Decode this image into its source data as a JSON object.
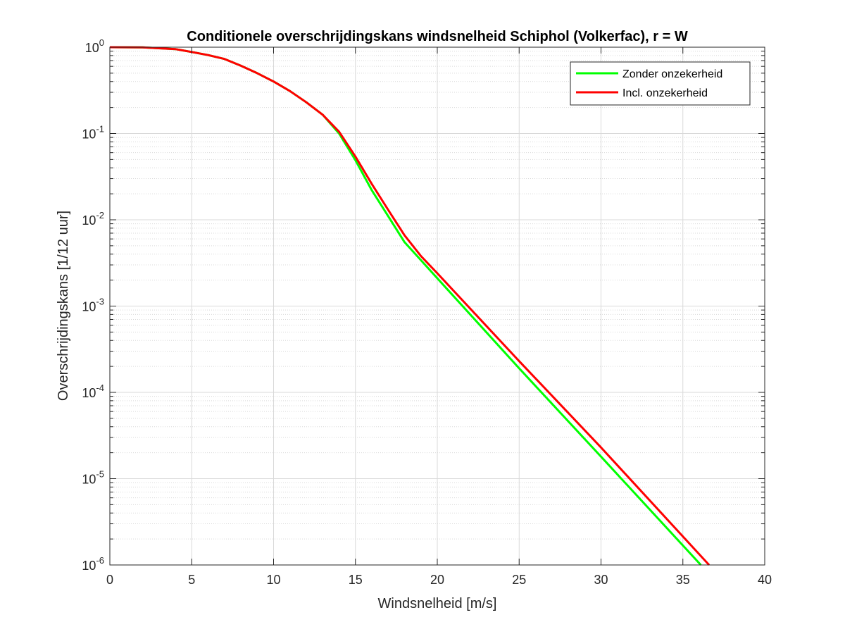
{
  "chart_data": {
    "type": "line",
    "title": "Conditionele overschrijdingskans windsnelheid Schiphol (Volkerfac), r = W",
    "xlabel": "Windsnelheid [m/s]",
    "ylabel": "Overschrijdingskans [1/12 uur]",
    "xlim": [
      0,
      40
    ],
    "ylim": [
      1e-06,
      1
    ],
    "yscale": "log",
    "grid": true,
    "legend_position": "top-right",
    "x_ticks": [
      "0",
      "5",
      "10",
      "15",
      "20",
      "25",
      "30",
      "35",
      "40"
    ],
    "y_ticks": [
      {
        "base": "10",
        "exp": "0",
        "value": 1
      },
      {
        "base": "10",
        "exp": "-1",
        "value": 0.1
      },
      {
        "base": "10",
        "exp": "-2",
        "value": 0.01
      },
      {
        "base": "10",
        "exp": "-3",
        "value": 0.001
      },
      {
        "base": "10",
        "exp": "-4",
        "value": 0.0001
      },
      {
        "base": "10",
        "exp": "-5",
        "value": 1e-05
      },
      {
        "base": "10",
        "exp": "-6",
        "value": 1e-06
      }
    ],
    "series": [
      {
        "name": "Zonder onzekerheid",
        "color": "#00ff00",
        "x": [
          0,
          2,
          4,
          5,
          6,
          7,
          8,
          9,
          10,
          11,
          12,
          13,
          14,
          15,
          16,
          17,
          18,
          19,
          20,
          25,
          30,
          36.1
        ],
        "y": [
          1.0,
          0.995,
          0.95,
          0.88,
          0.81,
          0.73,
          0.61,
          0.5,
          0.4,
          0.31,
          0.23,
          0.165,
          0.1,
          0.049,
          0.022,
          0.011,
          0.0055,
          0.0034,
          0.0021,
          0.00019,
          1.8e-05,
          1e-06
        ]
      },
      {
        "name": "Incl. onzekerheid",
        "color": "#ff0000",
        "x": [
          0,
          2,
          4,
          5,
          6,
          7,
          8,
          9,
          10,
          11,
          12,
          13,
          14,
          15,
          16,
          17,
          18,
          19,
          20,
          25,
          30,
          36.6
        ],
        "y": [
          1.0,
          0.995,
          0.95,
          0.88,
          0.81,
          0.73,
          0.61,
          0.5,
          0.4,
          0.31,
          0.23,
          0.165,
          0.105,
          0.054,
          0.026,
          0.013,
          0.0066,
          0.0038,
          0.0024,
          0.00023,
          2.3e-05,
          1e-06
        ]
      }
    ]
  }
}
